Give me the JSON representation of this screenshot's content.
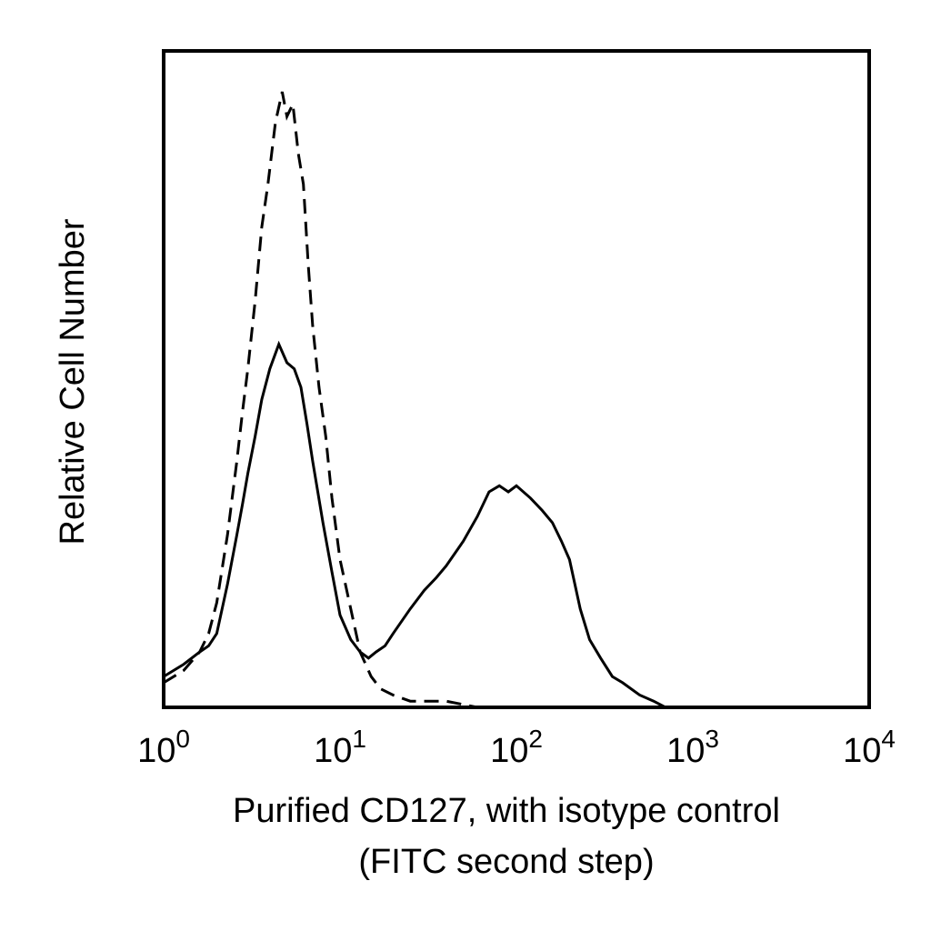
{
  "chart_data": {
    "type": "line",
    "title": "",
    "xlabel_line1": "Purified CD127, with isotype control",
    "xlabel_line2": "(FITC second step)",
    "ylabel": "Relative Cell Number",
    "x_scale": "log",
    "xlim": [
      1,
      10000
    ],
    "ylim": [
      0,
      100
    ],
    "grid": false,
    "x_ticks": [
      {
        "value": 1,
        "base": "10",
        "exp": "0"
      },
      {
        "value": 10,
        "base": "10",
        "exp": "1"
      },
      {
        "value": 100,
        "base": "10",
        "exp": "2"
      },
      {
        "value": 1000,
        "base": "10",
        "exp": "3"
      },
      {
        "value": 10000,
        "base": "10",
        "exp": "4"
      }
    ],
    "series": [
      {
        "style": "dashed",
        "x": [
          1.0,
          1.3,
          1.6,
          1.8,
          2.0,
          2.3,
          2.6,
          2.8,
          3.0,
          3.3,
          3.6,
          3.9,
          4.3,
          4.7,
          5.0,
          5.4,
          5.8,
          6.2,
          6.6,
          7.0,
          7.6,
          8.3,
          9.0,
          10.0,
          11.5,
          13.0,
          15.0,
          17.0,
          20.0,
          25.0,
          30.0,
          40.0,
          60.0,
          100.0,
          200.0,
          300.0,
          600.0,
          1000.0,
          10000.0
        ],
        "y": [
          4,
          6,
          9,
          12,
          17,
          28,
          40,
          48,
          55,
          66,
          78,
          85,
          95,
          100,
          96,
          98,
          90,
          85,
          72,
          62,
          52,
          44,
          34,
          24,
          16,
          9,
          5,
          3,
          2,
          1,
          1,
          1,
          0,
          0,
          0,
          0,
          0,
          0,
          0
        ]
      },
      {
        "style": "solid",
        "x": [
          1.0,
          1.3,
          1.6,
          1.8,
          2.0,
          2.3,
          2.6,
          2.8,
          3.0,
          3.3,
          3.6,
          4.0,
          4.5,
          5.0,
          5.5,
          6.0,
          6.5,
          7.0,
          8.0,
          9.0,
          10.0,
          11.5,
          13.0,
          14.5,
          16.0,
          18.0,
          20.0,
          25.0,
          30.0,
          35.0,
          40.0,
          50.0,
          60.0,
          70.0,
          80.0,
          90.0,
          100.0,
          120.0,
          140.0,
          160.0,
          180.0,
          200.0,
          230.0,
          260.0,
          300.0,
          350.0,
          400.0,
          500.0,
          600.0,
          700.0,
          1000.0,
          10000.0
        ],
        "y": [
          5,
          7,
          9,
          10,
          12,
          20,
          28,
          33,
          38,
          44,
          50,
          55,
          59,
          56,
          55,
          52,
          46,
          40,
          30,
          22,
          15,
          11,
          9,
          8,
          9,
          10,
          12,
          16,
          19,
          21,
          23,
          27,
          31,
          35,
          36,
          35,
          36,
          34,
          32,
          30,
          27,
          24,
          16,
          11,
          8,
          5,
          4,
          2,
          1,
          0,
          0,
          0
        ]
      }
    ]
  }
}
